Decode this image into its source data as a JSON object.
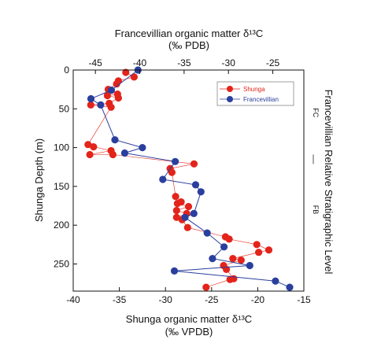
{
  "chart_data": {
    "type": "scatter",
    "top_axis": {
      "title": "Francevillian organic matter δ¹³C",
      "unit": "(‰ PDB)",
      "range": [
        -47.5,
        -21.5
      ],
      "ticks": [
        -45,
        -40,
        -35,
        -30,
        -25
      ],
      "tick_labels": [
        "-45",
        "-40",
        "-35",
        "-30",
        "-25"
      ]
    },
    "bottom_axis": {
      "title": "Shunga organic matter δ¹³C",
      "unit": "(‰ VPDB)",
      "range": [
        -40,
        -15
      ],
      "ticks": [
        -40,
        -35,
        -30,
        -25,
        -20,
        -15
      ],
      "tick_labels": [
        "-40",
        "-35",
        "-30",
        "-25",
        "-20",
        "-15"
      ]
    },
    "y_axis": {
      "title": "Shunga Depth (m)",
      "range": [
        0,
        285
      ],
      "inverted": true,
      "ticks": [
        0,
        50,
        100,
        150,
        200,
        250
      ],
      "tick_labels": [
        "0",
        "50",
        "100",
        "150",
        "200",
        "250"
      ]
    },
    "right_axis": {
      "title": "Francevillian Relative Stratigraphic Level",
      "zones": [
        {
          "label": "FC",
          "depth": 55
        },
        {
          "label": "FB",
          "depth": 180
        }
      ],
      "boundary_depth": 115
    },
    "legend": {
      "position": "top-right"
    },
    "series": [
      {
        "name": "Shunga",
        "color": "#e3241b",
        "axis": "bottom",
        "points": [
          [
            -34.3,
            3
          ],
          [
            -33.4,
            9
          ],
          [
            -35.1,
            14
          ],
          [
            -35.3,
            18
          ],
          [
            -36.2,
            25
          ],
          [
            -35.2,
            31
          ],
          [
            -36.3,
            33
          ],
          [
            -35.1,
            36
          ],
          [
            -36.1,
            43
          ],
          [
            -38.1,
            45
          ],
          [
            -35.9,
            48
          ],
          [
            -38.4,
            96
          ],
          [
            -37.8,
            99
          ],
          [
            -35.9,
            104
          ],
          [
            -38.2,
            109
          ],
          [
            -35.7,
            109
          ],
          [
            -26.9,
            121
          ],
          [
            -29.5,
            127
          ],
          [
            -29.3,
            132
          ],
          [
            -28.9,
            163
          ],
          [
            -28.3,
            170
          ],
          [
            -28.7,
            172
          ],
          [
            -27.5,
            176
          ],
          [
            -28.8,
            181
          ],
          [
            -27.7,
            185
          ],
          [
            -28.8,
            190
          ],
          [
            -28.2,
            193
          ],
          [
            -27.6,
            203
          ],
          [
            -23.5,
            215
          ],
          [
            -23.1,
            218
          ],
          [
            -20.1,
            225
          ],
          [
            -18.8,
            232
          ],
          [
            -19.9,
            235
          ],
          [
            -22.7,
            243
          ],
          [
            -21.8,
            245
          ],
          [
            -23.7,
            252
          ],
          [
            -23.4,
            257
          ],
          [
            -22.6,
            269
          ],
          [
            -23.0,
            270
          ],
          [
            -25.6,
            280
          ]
        ]
      },
      {
        "name": "Francevillian",
        "color": "#2a3f9d",
        "axis": "top",
        "points": [
          [
            -40.2,
            0
          ],
          [
            -43.2,
            26
          ],
          [
            -45.5,
            37
          ],
          [
            -44.4,
            45
          ],
          [
            -42.8,
            90
          ],
          [
            -39.7,
            100
          ],
          [
            -41.7,
            107
          ],
          [
            -36.0,
            118
          ],
          [
            -37.4,
            141
          ],
          [
            -33.7,
            148
          ],
          [
            -33.1,
            157
          ],
          [
            -33.9,
            185
          ],
          [
            -34.9,
            190
          ],
          [
            -32.4,
            210
          ],
          [
            -30.5,
            228
          ],
          [
            -31.8,
            243
          ],
          [
            -27.6,
            252
          ],
          [
            -36.1,
            259
          ],
          [
            -24.7,
            272
          ],
          [
            -23.1,
            280
          ]
        ]
      }
    ]
  }
}
